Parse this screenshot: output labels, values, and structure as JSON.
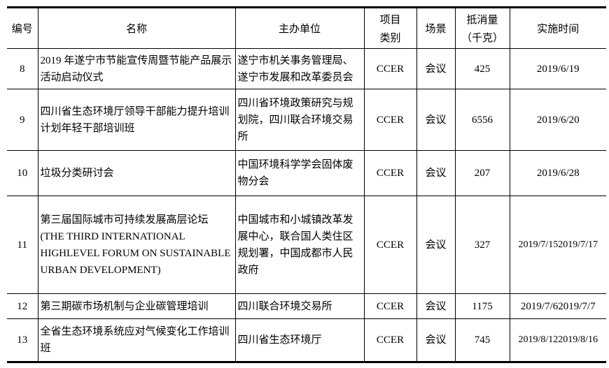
{
  "headers": {
    "no": "编号",
    "name": "名称",
    "organizer": "主办单位",
    "category_line1": "项目",
    "category_line2": "类别",
    "scene": "场景",
    "offset_line1": "抵消量",
    "offset_line2": "（千克）",
    "date": "实施时间"
  },
  "rows": [
    {
      "no": "8",
      "name": "2019 年遂宁市节能宣传周暨节能产品展示活动启动仪式",
      "organizer": "遂宁市机关事务管理局、遂宁市发展和改革委员会",
      "category": "CCER",
      "scene": "会议",
      "offset": "425",
      "date": "2019/6/19"
    },
    {
      "no": "9",
      "name": "四川省生态环境厅领导干部能力提升培训计划年轻干部培训班",
      "organizer": "四川省环境政策研究与规划院，四川联合环境交易所",
      "category": "CCER",
      "scene": "会议",
      "offset": "6556",
      "date": "2019/6/20"
    },
    {
      "no": "10",
      "name": "垃圾分类研讨会",
      "organizer": "中国环境科学学会固体废物分会",
      "category": "CCER",
      "scene": "会议",
      "offset": "207",
      "date": "2019/6/28"
    },
    {
      "no": "11",
      "name": "第三届国际城市可持续发展高层论坛 (THE THIRD INTERNATIONAL HIGHLEVEL FORUM ON SUSTAINABLE URBAN DEVELOPMENT)",
      "organizer": "中国城市和小城镇改革发展中心，联合国人类住区规划署，中国成都市人民政府",
      "category": "CCER",
      "scene": "会议",
      "offset": "327",
      "date": "2019/7/152019/7/17"
    },
    {
      "no": "12",
      "name": "第三期碳市场机制与企业碳管理培训",
      "organizer": "四川联合环境交易所",
      "category": "CCER",
      "scene": "会议",
      "offset": "1175",
      "date": "2019/7/62019/7/7"
    },
    {
      "no": "13",
      "name": "全省生态环境系统应对气候变化工作培训班",
      "organizer": "四川省生态环境厅",
      "category": "CCER",
      "scene": "会议",
      "offset": "745",
      "date": "2019/8/122019/8/16"
    }
  ]
}
